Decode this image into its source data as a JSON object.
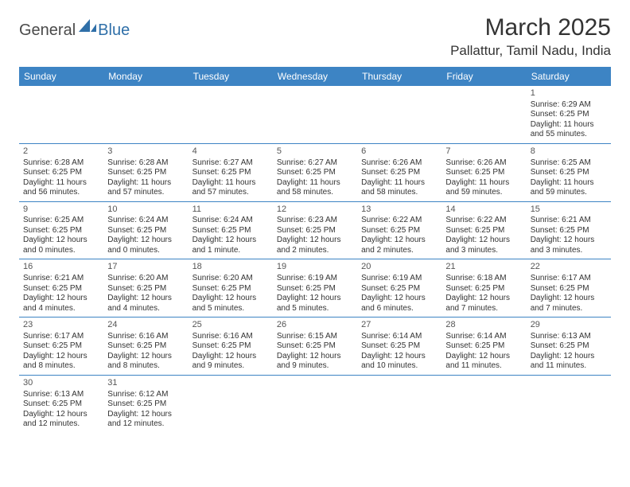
{
  "logo": {
    "part1": "General",
    "part2": "Blue"
  },
  "title": "March 2025",
  "location": "Pallattur, Tamil Nadu, India",
  "colors": {
    "header_bg": "#3d84c4",
    "header_text": "#ffffff",
    "border": "#3d84c4",
    "body_text": "#333333",
    "logo_gray": "#4a4a4a",
    "logo_blue": "#2f6fa8",
    "background": "#ffffff"
  },
  "typography": {
    "title_fontsize": 30,
    "location_fontsize": 17,
    "th_fontsize": 12,
    "cell_fontsize": 10,
    "daynum_fontsize": 11,
    "logo_fontsize": 20
  },
  "weekdays": [
    "Sunday",
    "Monday",
    "Tuesday",
    "Wednesday",
    "Thursday",
    "Friday",
    "Saturday"
  ],
  "weeks": [
    [
      null,
      null,
      null,
      null,
      null,
      null,
      {
        "d": "1",
        "sr": "Sunrise: 6:29 AM",
        "ss": "Sunset: 6:25 PM",
        "dl1": "Daylight: 11 hours",
        "dl2": "and 55 minutes."
      }
    ],
    [
      {
        "d": "2",
        "sr": "Sunrise: 6:28 AM",
        "ss": "Sunset: 6:25 PM",
        "dl1": "Daylight: 11 hours",
        "dl2": "and 56 minutes."
      },
      {
        "d": "3",
        "sr": "Sunrise: 6:28 AM",
        "ss": "Sunset: 6:25 PM",
        "dl1": "Daylight: 11 hours",
        "dl2": "and 57 minutes."
      },
      {
        "d": "4",
        "sr": "Sunrise: 6:27 AM",
        "ss": "Sunset: 6:25 PM",
        "dl1": "Daylight: 11 hours",
        "dl2": "and 57 minutes."
      },
      {
        "d": "5",
        "sr": "Sunrise: 6:27 AM",
        "ss": "Sunset: 6:25 PM",
        "dl1": "Daylight: 11 hours",
        "dl2": "and 58 minutes."
      },
      {
        "d": "6",
        "sr": "Sunrise: 6:26 AM",
        "ss": "Sunset: 6:25 PM",
        "dl1": "Daylight: 11 hours",
        "dl2": "and 58 minutes."
      },
      {
        "d": "7",
        "sr": "Sunrise: 6:26 AM",
        "ss": "Sunset: 6:25 PM",
        "dl1": "Daylight: 11 hours",
        "dl2": "and 59 minutes."
      },
      {
        "d": "8",
        "sr": "Sunrise: 6:25 AM",
        "ss": "Sunset: 6:25 PM",
        "dl1": "Daylight: 11 hours",
        "dl2": "and 59 minutes."
      }
    ],
    [
      {
        "d": "9",
        "sr": "Sunrise: 6:25 AM",
        "ss": "Sunset: 6:25 PM",
        "dl1": "Daylight: 12 hours",
        "dl2": "and 0 minutes."
      },
      {
        "d": "10",
        "sr": "Sunrise: 6:24 AM",
        "ss": "Sunset: 6:25 PM",
        "dl1": "Daylight: 12 hours",
        "dl2": "and 0 minutes."
      },
      {
        "d": "11",
        "sr": "Sunrise: 6:24 AM",
        "ss": "Sunset: 6:25 PM",
        "dl1": "Daylight: 12 hours",
        "dl2": "and 1 minute."
      },
      {
        "d": "12",
        "sr": "Sunrise: 6:23 AM",
        "ss": "Sunset: 6:25 PM",
        "dl1": "Daylight: 12 hours",
        "dl2": "and 2 minutes."
      },
      {
        "d": "13",
        "sr": "Sunrise: 6:22 AM",
        "ss": "Sunset: 6:25 PM",
        "dl1": "Daylight: 12 hours",
        "dl2": "and 2 minutes."
      },
      {
        "d": "14",
        "sr": "Sunrise: 6:22 AM",
        "ss": "Sunset: 6:25 PM",
        "dl1": "Daylight: 12 hours",
        "dl2": "and 3 minutes."
      },
      {
        "d": "15",
        "sr": "Sunrise: 6:21 AM",
        "ss": "Sunset: 6:25 PM",
        "dl1": "Daylight: 12 hours",
        "dl2": "and 3 minutes."
      }
    ],
    [
      {
        "d": "16",
        "sr": "Sunrise: 6:21 AM",
        "ss": "Sunset: 6:25 PM",
        "dl1": "Daylight: 12 hours",
        "dl2": "and 4 minutes."
      },
      {
        "d": "17",
        "sr": "Sunrise: 6:20 AM",
        "ss": "Sunset: 6:25 PM",
        "dl1": "Daylight: 12 hours",
        "dl2": "and 4 minutes."
      },
      {
        "d": "18",
        "sr": "Sunrise: 6:20 AM",
        "ss": "Sunset: 6:25 PM",
        "dl1": "Daylight: 12 hours",
        "dl2": "and 5 minutes."
      },
      {
        "d": "19",
        "sr": "Sunrise: 6:19 AM",
        "ss": "Sunset: 6:25 PM",
        "dl1": "Daylight: 12 hours",
        "dl2": "and 5 minutes."
      },
      {
        "d": "20",
        "sr": "Sunrise: 6:19 AM",
        "ss": "Sunset: 6:25 PM",
        "dl1": "Daylight: 12 hours",
        "dl2": "and 6 minutes."
      },
      {
        "d": "21",
        "sr": "Sunrise: 6:18 AM",
        "ss": "Sunset: 6:25 PM",
        "dl1": "Daylight: 12 hours",
        "dl2": "and 7 minutes."
      },
      {
        "d": "22",
        "sr": "Sunrise: 6:17 AM",
        "ss": "Sunset: 6:25 PM",
        "dl1": "Daylight: 12 hours",
        "dl2": "and 7 minutes."
      }
    ],
    [
      {
        "d": "23",
        "sr": "Sunrise: 6:17 AM",
        "ss": "Sunset: 6:25 PM",
        "dl1": "Daylight: 12 hours",
        "dl2": "and 8 minutes."
      },
      {
        "d": "24",
        "sr": "Sunrise: 6:16 AM",
        "ss": "Sunset: 6:25 PM",
        "dl1": "Daylight: 12 hours",
        "dl2": "and 8 minutes."
      },
      {
        "d": "25",
        "sr": "Sunrise: 6:16 AM",
        "ss": "Sunset: 6:25 PM",
        "dl1": "Daylight: 12 hours",
        "dl2": "and 9 minutes."
      },
      {
        "d": "26",
        "sr": "Sunrise: 6:15 AM",
        "ss": "Sunset: 6:25 PM",
        "dl1": "Daylight: 12 hours",
        "dl2": "and 9 minutes."
      },
      {
        "d": "27",
        "sr": "Sunrise: 6:14 AM",
        "ss": "Sunset: 6:25 PM",
        "dl1": "Daylight: 12 hours",
        "dl2": "and 10 minutes."
      },
      {
        "d": "28",
        "sr": "Sunrise: 6:14 AM",
        "ss": "Sunset: 6:25 PM",
        "dl1": "Daylight: 12 hours",
        "dl2": "and 11 minutes."
      },
      {
        "d": "29",
        "sr": "Sunrise: 6:13 AM",
        "ss": "Sunset: 6:25 PM",
        "dl1": "Daylight: 12 hours",
        "dl2": "and 11 minutes."
      }
    ],
    [
      {
        "d": "30",
        "sr": "Sunrise: 6:13 AM",
        "ss": "Sunset: 6:25 PM",
        "dl1": "Daylight: 12 hours",
        "dl2": "and 12 minutes."
      },
      {
        "d": "31",
        "sr": "Sunrise: 6:12 AM",
        "ss": "Sunset: 6:25 PM",
        "dl1": "Daylight: 12 hours",
        "dl2": "and 12 minutes."
      },
      null,
      null,
      null,
      null,
      null
    ]
  ]
}
